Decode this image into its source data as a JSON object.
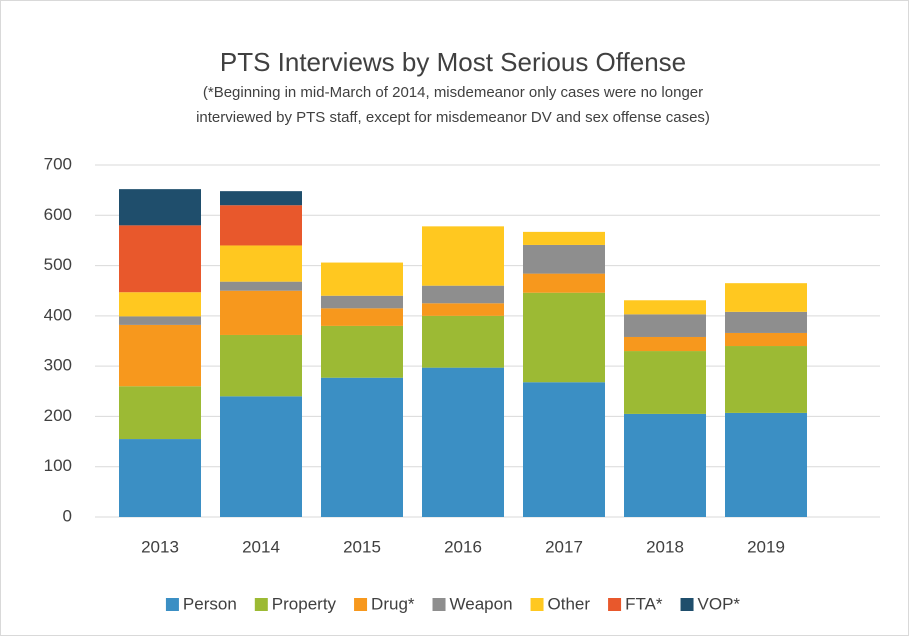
{
  "chart_data": {
    "type": "stacked_bar",
    "title": "PTS Interviews by Most Serious Offense",
    "subtitle": [
      "(*Beginning in mid-March of 2014, misdemeanor only cases were no longer",
      "interviewed by PTS staff, except for misdemeanor DV and sex offense cases)"
    ],
    "categories": [
      "2013",
      "2014",
      "2015",
      "2016",
      "2017",
      "2018",
      "2019"
    ],
    "series": [
      {
        "name": "Person",
        "color": "#3b8fc4",
        "values": [
          155,
          240,
          277,
          297,
          268,
          205,
          207
        ]
      },
      {
        "name": "Property",
        "color": "#9cba34",
        "values": [
          105,
          122,
          103,
          103,
          178,
          125,
          133
        ]
      },
      {
        "name": "Drug*",
        "color": "#f7981d",
        "values": [
          122,
          88,
          35,
          25,
          38,
          28,
          26
        ]
      },
      {
        "name": "Weapon",
        "color": "#8e8e8e",
        "values": [
          17,
          18,
          25,
          35,
          57,
          45,
          42
        ]
      },
      {
        "name": "Other",
        "color": "#ffc820",
        "values": [
          48,
          72,
          66,
          118,
          26,
          28,
          57
        ]
      },
      {
        "name": "FTA*",
        "color": "#e8582c",
        "values": [
          133,
          80,
          0,
          0,
          0,
          0,
          0
        ]
      },
      {
        "name": "VOP*",
        "color": "#1f4e6c",
        "values": [
          72,
          28,
          0,
          0,
          0,
          0,
          0
        ]
      }
    ],
    "ylim": [
      0,
      700
    ],
    "yticks": [
      0,
      100,
      200,
      300,
      400,
      500,
      600,
      700
    ],
    "grid": true,
    "legend": "bottom"
  }
}
